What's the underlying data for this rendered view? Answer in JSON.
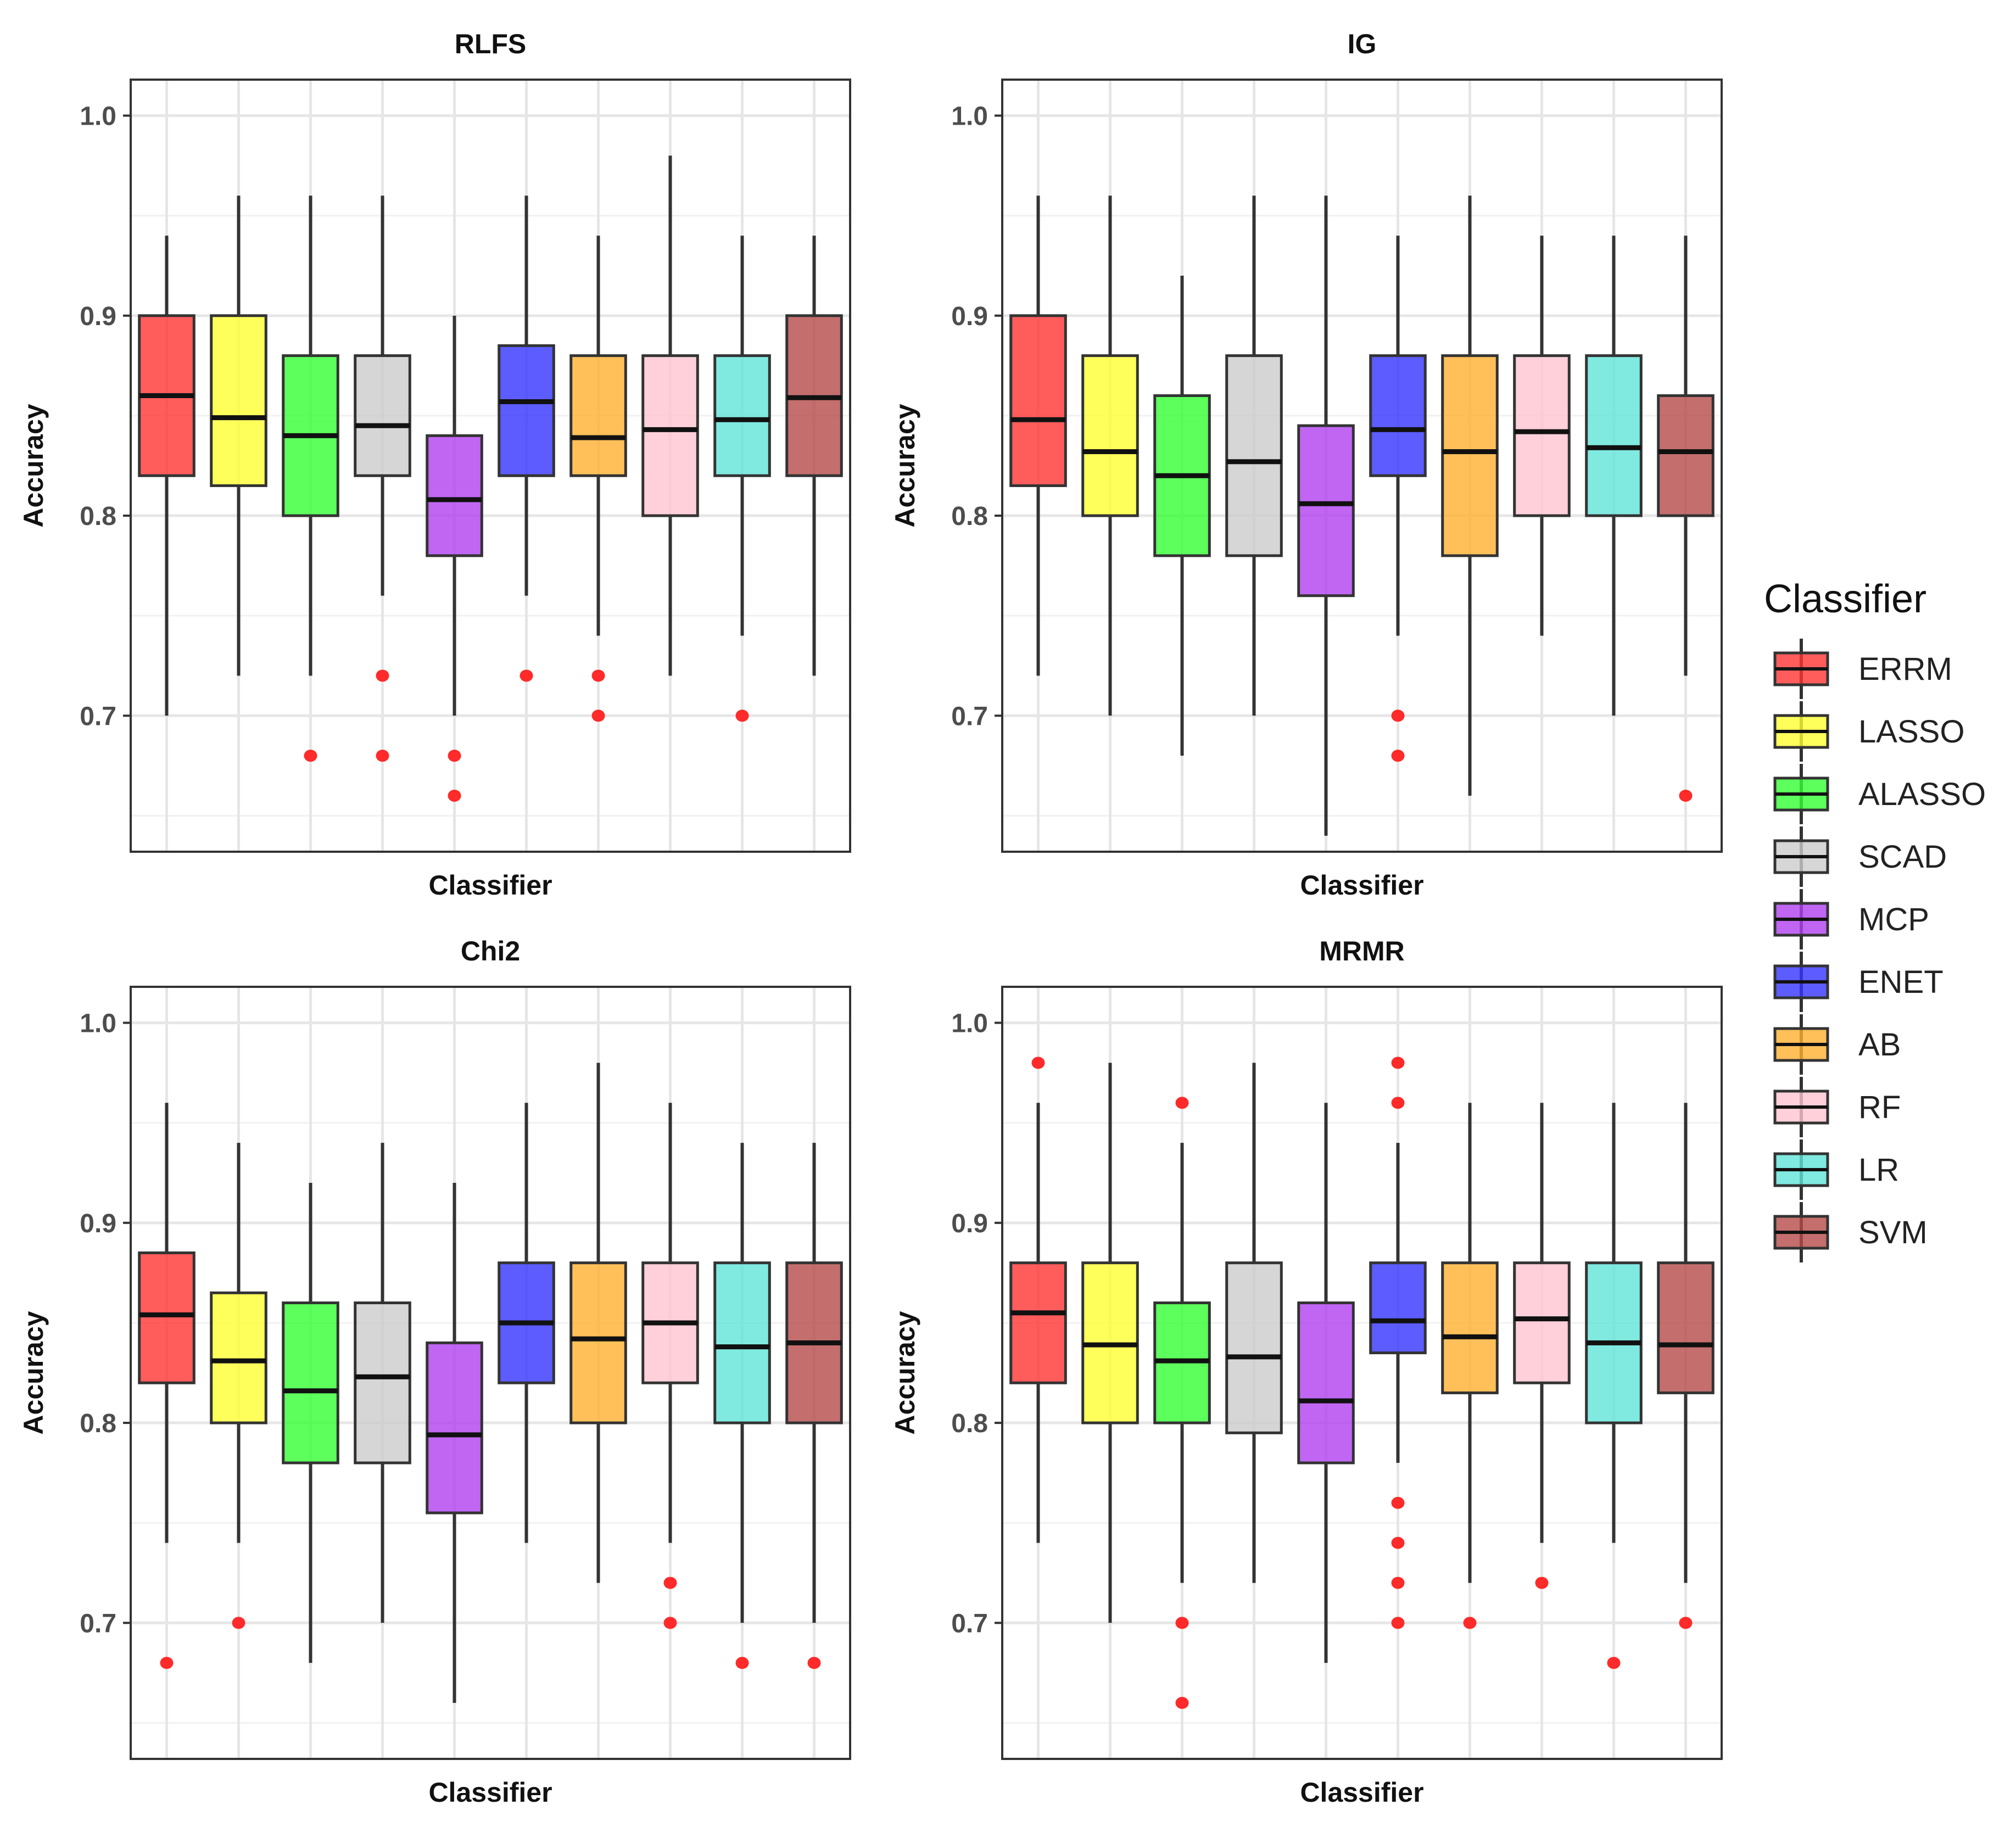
{
  "chart_data": {
    "type": "boxplot",
    "layout": "2x2 facets",
    "classifiers": [
      "ERRM",
      "LASSO",
      "ALASSO",
      "SCAD",
      "MCP",
      "ENET",
      "AB",
      "RF",
      "LR",
      "SVM"
    ],
    "colors": {
      "ERRM": "#ff3333",
      "LASSO": "#ffff33",
      "ALASSO": "#33ff33",
      "SCAD": "#cccccc",
      "MCP": "#b040f0",
      "ENET": "#3333ff",
      "AB": "#ffb030",
      "RF": "#ffc4cf",
      "LR": "#60e4d8",
      "SVM": "#b54a4a"
    },
    "outlier_color": "#ff2a2a",
    "ylim": [
      0.632,
      1.018
    ],
    "yticks": [
      "0.7",
      "0.8",
      "0.9",
      "1.0"
    ],
    "legend": {
      "title": "Classifier",
      "position": "right"
    },
    "panels": [
      {
        "title": "RLFS",
        "xlabel": "Classifier",
        "ylabel": "Accuracy",
        "boxes": [
          {
            "name": "ERRM",
            "lo": 0.7,
            "q1": 0.82,
            "med": 0.86,
            "q3": 0.9,
            "hi": 0.94,
            "out": []
          },
          {
            "name": "LASSO",
            "lo": 0.72,
            "q1": 0.815,
            "med": 0.849,
            "q3": 0.9,
            "hi": 0.96,
            "out": []
          },
          {
            "name": "ALASSO",
            "lo": 0.72,
            "q1": 0.8,
            "med": 0.84,
            "q3": 0.88,
            "hi": 0.96,
            "out": [
              0.68
            ]
          },
          {
            "name": "SCAD",
            "lo": 0.76,
            "q1": 0.82,
            "med": 0.845,
            "q3": 0.88,
            "hi": 0.96,
            "out": [
              0.72,
              0.68
            ]
          },
          {
            "name": "MCP",
            "lo": 0.7,
            "q1": 0.78,
            "med": 0.808,
            "q3": 0.84,
            "hi": 0.9,
            "out": [
              0.68,
              0.66
            ]
          },
          {
            "name": "ENET",
            "lo": 0.76,
            "q1": 0.82,
            "med": 0.857,
            "q3": 0.885,
            "hi": 0.96,
            "out": [
              0.72
            ]
          },
          {
            "name": "AB",
            "lo": 0.74,
            "q1": 0.82,
            "med": 0.839,
            "q3": 0.88,
            "hi": 0.94,
            "out": [
              0.72,
              0.7
            ]
          },
          {
            "name": "RF",
            "lo": 0.72,
            "q1": 0.8,
            "med": 0.843,
            "q3": 0.88,
            "hi": 0.98,
            "out": []
          },
          {
            "name": "LR",
            "lo": 0.74,
            "q1": 0.82,
            "med": 0.848,
            "q3": 0.88,
            "hi": 0.94,
            "out": [
              0.7
            ]
          },
          {
            "name": "SVM",
            "lo": 0.72,
            "q1": 0.82,
            "med": 0.859,
            "q3": 0.9,
            "hi": 0.94,
            "out": []
          }
        ]
      },
      {
        "title": "IG",
        "xlabel": "Classifier",
        "ylabel": "Accuracy",
        "boxes": [
          {
            "name": "ERRM",
            "lo": 0.72,
            "q1": 0.815,
            "med": 0.848,
            "q3": 0.9,
            "hi": 0.96,
            "out": []
          },
          {
            "name": "LASSO",
            "lo": 0.7,
            "q1": 0.8,
            "med": 0.832,
            "q3": 0.88,
            "hi": 0.96,
            "out": []
          },
          {
            "name": "ALASSO",
            "lo": 0.68,
            "q1": 0.78,
            "med": 0.82,
            "q3": 0.86,
            "hi": 0.92,
            "out": []
          },
          {
            "name": "SCAD",
            "lo": 0.7,
            "q1": 0.78,
            "med": 0.827,
            "q3": 0.88,
            "hi": 0.96,
            "out": []
          },
          {
            "name": "MCP",
            "lo": 0.64,
            "q1": 0.76,
            "med": 0.806,
            "q3": 0.845,
            "hi": 0.96,
            "out": []
          },
          {
            "name": "ENET",
            "lo": 0.74,
            "q1": 0.82,
            "med": 0.843,
            "q3": 0.88,
            "hi": 0.94,
            "out": [
              0.7,
              0.68
            ]
          },
          {
            "name": "AB",
            "lo": 0.66,
            "q1": 0.78,
            "med": 0.832,
            "q3": 0.88,
            "hi": 0.96,
            "out": []
          },
          {
            "name": "RF",
            "lo": 0.74,
            "q1": 0.8,
            "med": 0.842,
            "q3": 0.88,
            "hi": 0.94,
            "out": []
          },
          {
            "name": "LR",
            "lo": 0.7,
            "q1": 0.8,
            "med": 0.834,
            "q3": 0.88,
            "hi": 0.94,
            "out": []
          },
          {
            "name": "SVM",
            "lo": 0.72,
            "q1": 0.8,
            "med": 0.832,
            "q3": 0.86,
            "hi": 0.94,
            "out": [
              0.66
            ]
          }
        ]
      },
      {
        "title": "Chi2",
        "xlabel": "Classifier",
        "ylabel": "Accuracy",
        "boxes": [
          {
            "name": "ERRM",
            "lo": 0.74,
            "q1": 0.82,
            "med": 0.854,
            "q3": 0.885,
            "hi": 0.96,
            "out": [
              0.68
            ]
          },
          {
            "name": "LASSO",
            "lo": 0.74,
            "q1": 0.8,
            "med": 0.831,
            "q3": 0.865,
            "hi": 0.94,
            "out": [
              0.7
            ]
          },
          {
            "name": "ALASSO",
            "lo": 0.68,
            "q1": 0.78,
            "med": 0.816,
            "q3": 0.86,
            "hi": 0.92,
            "out": []
          },
          {
            "name": "SCAD",
            "lo": 0.7,
            "q1": 0.78,
            "med": 0.823,
            "q3": 0.86,
            "hi": 0.94,
            "out": []
          },
          {
            "name": "MCP",
            "lo": 0.66,
            "q1": 0.755,
            "med": 0.794,
            "q3": 0.84,
            "hi": 0.92,
            "out": []
          },
          {
            "name": "ENET",
            "lo": 0.74,
            "q1": 0.82,
            "med": 0.85,
            "q3": 0.88,
            "hi": 0.96,
            "out": []
          },
          {
            "name": "AB",
            "lo": 0.72,
            "q1": 0.8,
            "med": 0.842,
            "q3": 0.88,
            "hi": 0.98,
            "out": []
          },
          {
            "name": "RF",
            "lo": 0.74,
            "q1": 0.82,
            "med": 0.85,
            "q3": 0.88,
            "hi": 0.96,
            "out": [
              0.72,
              0.7
            ]
          },
          {
            "name": "LR",
            "lo": 0.7,
            "q1": 0.8,
            "med": 0.838,
            "q3": 0.88,
            "hi": 0.94,
            "out": [
              0.68
            ]
          },
          {
            "name": "SVM",
            "lo": 0.7,
            "q1": 0.8,
            "med": 0.84,
            "q3": 0.88,
            "hi": 0.94,
            "out": [
              0.68
            ]
          }
        ]
      },
      {
        "title": "MRMR",
        "xlabel": "Classifier",
        "ylabel": "Accuracy",
        "boxes": [
          {
            "name": "ERRM",
            "lo": 0.74,
            "q1": 0.82,
            "med": 0.855,
            "q3": 0.88,
            "hi": 0.96,
            "out": [
              0.98
            ]
          },
          {
            "name": "LASSO",
            "lo": 0.7,
            "q1": 0.8,
            "med": 0.839,
            "q3": 0.88,
            "hi": 0.98,
            "out": []
          },
          {
            "name": "ALASSO",
            "lo": 0.72,
            "q1": 0.8,
            "med": 0.831,
            "q3": 0.86,
            "hi": 0.94,
            "out": [
              0.96,
              0.7,
              0.66
            ]
          },
          {
            "name": "SCAD",
            "lo": 0.72,
            "q1": 0.795,
            "med": 0.833,
            "q3": 0.88,
            "hi": 0.98,
            "out": []
          },
          {
            "name": "MCP",
            "lo": 0.68,
            "q1": 0.78,
            "med": 0.811,
            "q3": 0.86,
            "hi": 0.96,
            "out": []
          },
          {
            "name": "ENET",
            "lo": 0.78,
            "q1": 0.835,
            "med": 0.851,
            "q3": 0.88,
            "hi": 0.94,
            "out": [
              0.98,
              0.96,
              0.76,
              0.74,
              0.72,
              0.7
            ]
          },
          {
            "name": "AB",
            "lo": 0.72,
            "q1": 0.815,
            "med": 0.843,
            "q3": 0.88,
            "hi": 0.96,
            "out": [
              0.7
            ]
          },
          {
            "name": "RF",
            "lo": 0.74,
            "q1": 0.82,
            "med": 0.852,
            "q3": 0.88,
            "hi": 0.96,
            "out": [
              0.72
            ]
          },
          {
            "name": "LR",
            "lo": 0.74,
            "q1": 0.8,
            "med": 0.84,
            "q3": 0.88,
            "hi": 0.96,
            "out": [
              0.68
            ]
          },
          {
            "name": "SVM",
            "lo": 0.72,
            "q1": 0.815,
            "med": 0.839,
            "q3": 0.88,
            "hi": 0.96,
            "out": [
              0.7
            ]
          }
        ]
      }
    ]
  }
}
